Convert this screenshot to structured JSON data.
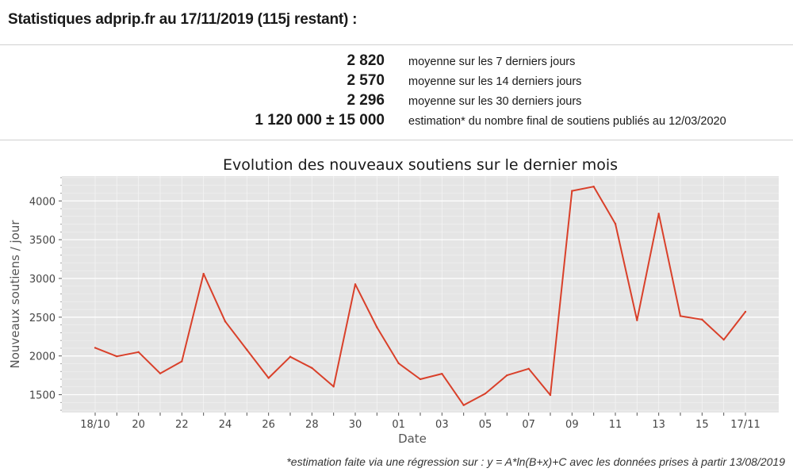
{
  "header": {
    "title": "Statistiques adprip.fr au 17/11/2019 (115j restant) :"
  },
  "stats": [
    {
      "value": "2 820",
      "label": "moyenne sur les 7 derniers jours"
    },
    {
      "value": "2 570",
      "label": "moyenne sur les 14 derniers jours"
    },
    {
      "value": "2 296",
      "label": "moyenne sur les 30 derniers jours"
    },
    {
      "value": "1 120 000 ± 15 000",
      "label": "estimation* du nombre final de soutiens publiés au 12/03/2020"
    }
  ],
  "footnote": "*estimation faite via une régression sur : y = A*ln(B+x)+C avec les données prises à partir 13/08/2019",
  "chart_data": {
    "type": "line",
    "title": "Evolution des nouveaux soutiens sur le dernier mois",
    "xlabel": "Date",
    "ylabel": "Nouveaux soutiens / jour",
    "x": [
      "2019-10-18",
      "2019-10-19",
      "2019-10-20",
      "2019-10-21",
      "2019-10-22",
      "2019-10-23",
      "2019-10-24",
      "2019-10-25",
      "2019-10-26",
      "2019-10-27",
      "2019-10-28",
      "2019-10-29",
      "2019-10-30",
      "2019-10-31",
      "2019-11-01",
      "2019-11-02",
      "2019-11-03",
      "2019-11-04",
      "2019-11-05",
      "2019-11-06",
      "2019-11-07",
      "2019-11-08",
      "2019-11-09",
      "2019-11-10",
      "2019-11-11",
      "2019-11-12",
      "2019-11-13",
      "2019-11-14",
      "2019-11-15",
      "2019-11-16",
      "2019-11-17"
    ],
    "series": [
      {
        "values": [
          2105,
          1995,
          2050,
          1775,
          1930,
          3060,
          2445,
          2080,
          1715,
          1990,
          1845,
          1605,
          2925,
          2370,
          1905,
          1700,
          1770,
          1365,
          1515,
          1750,
          1835,
          1495,
          4130,
          4185,
          3705,
          2460,
          3835,
          2515,
          2470,
          2210,
          2570
        ]
      }
    ],
    "x_ticks": [
      {
        "index": 0,
        "label": "18/10"
      },
      {
        "index": 2,
        "label": "20"
      },
      {
        "index": 4,
        "label": "22"
      },
      {
        "index": 6,
        "label": "24"
      },
      {
        "index": 8,
        "label": "26"
      },
      {
        "index": 10,
        "label": "28"
      },
      {
        "index": 12,
        "label": "30"
      },
      {
        "index": 14,
        "label": "01"
      },
      {
        "index": 16,
        "label": "03"
      },
      {
        "index": 18,
        "label": "05"
      },
      {
        "index": 20,
        "label": "07"
      },
      {
        "index": 22,
        "label": "09"
      },
      {
        "index": 24,
        "label": "11"
      },
      {
        "index": 26,
        "label": "13"
      },
      {
        "index": 28,
        "label": "15"
      },
      {
        "index": 30,
        "label": "17/11"
      }
    ],
    "y_ticks": [
      1500,
      2000,
      2500,
      3000,
      3500,
      4000
    ],
    "ylim": [
      1270,
      4320
    ],
    "grid": true,
    "line_color": "#d9402a",
    "background_color": "#e5e5e5"
  }
}
